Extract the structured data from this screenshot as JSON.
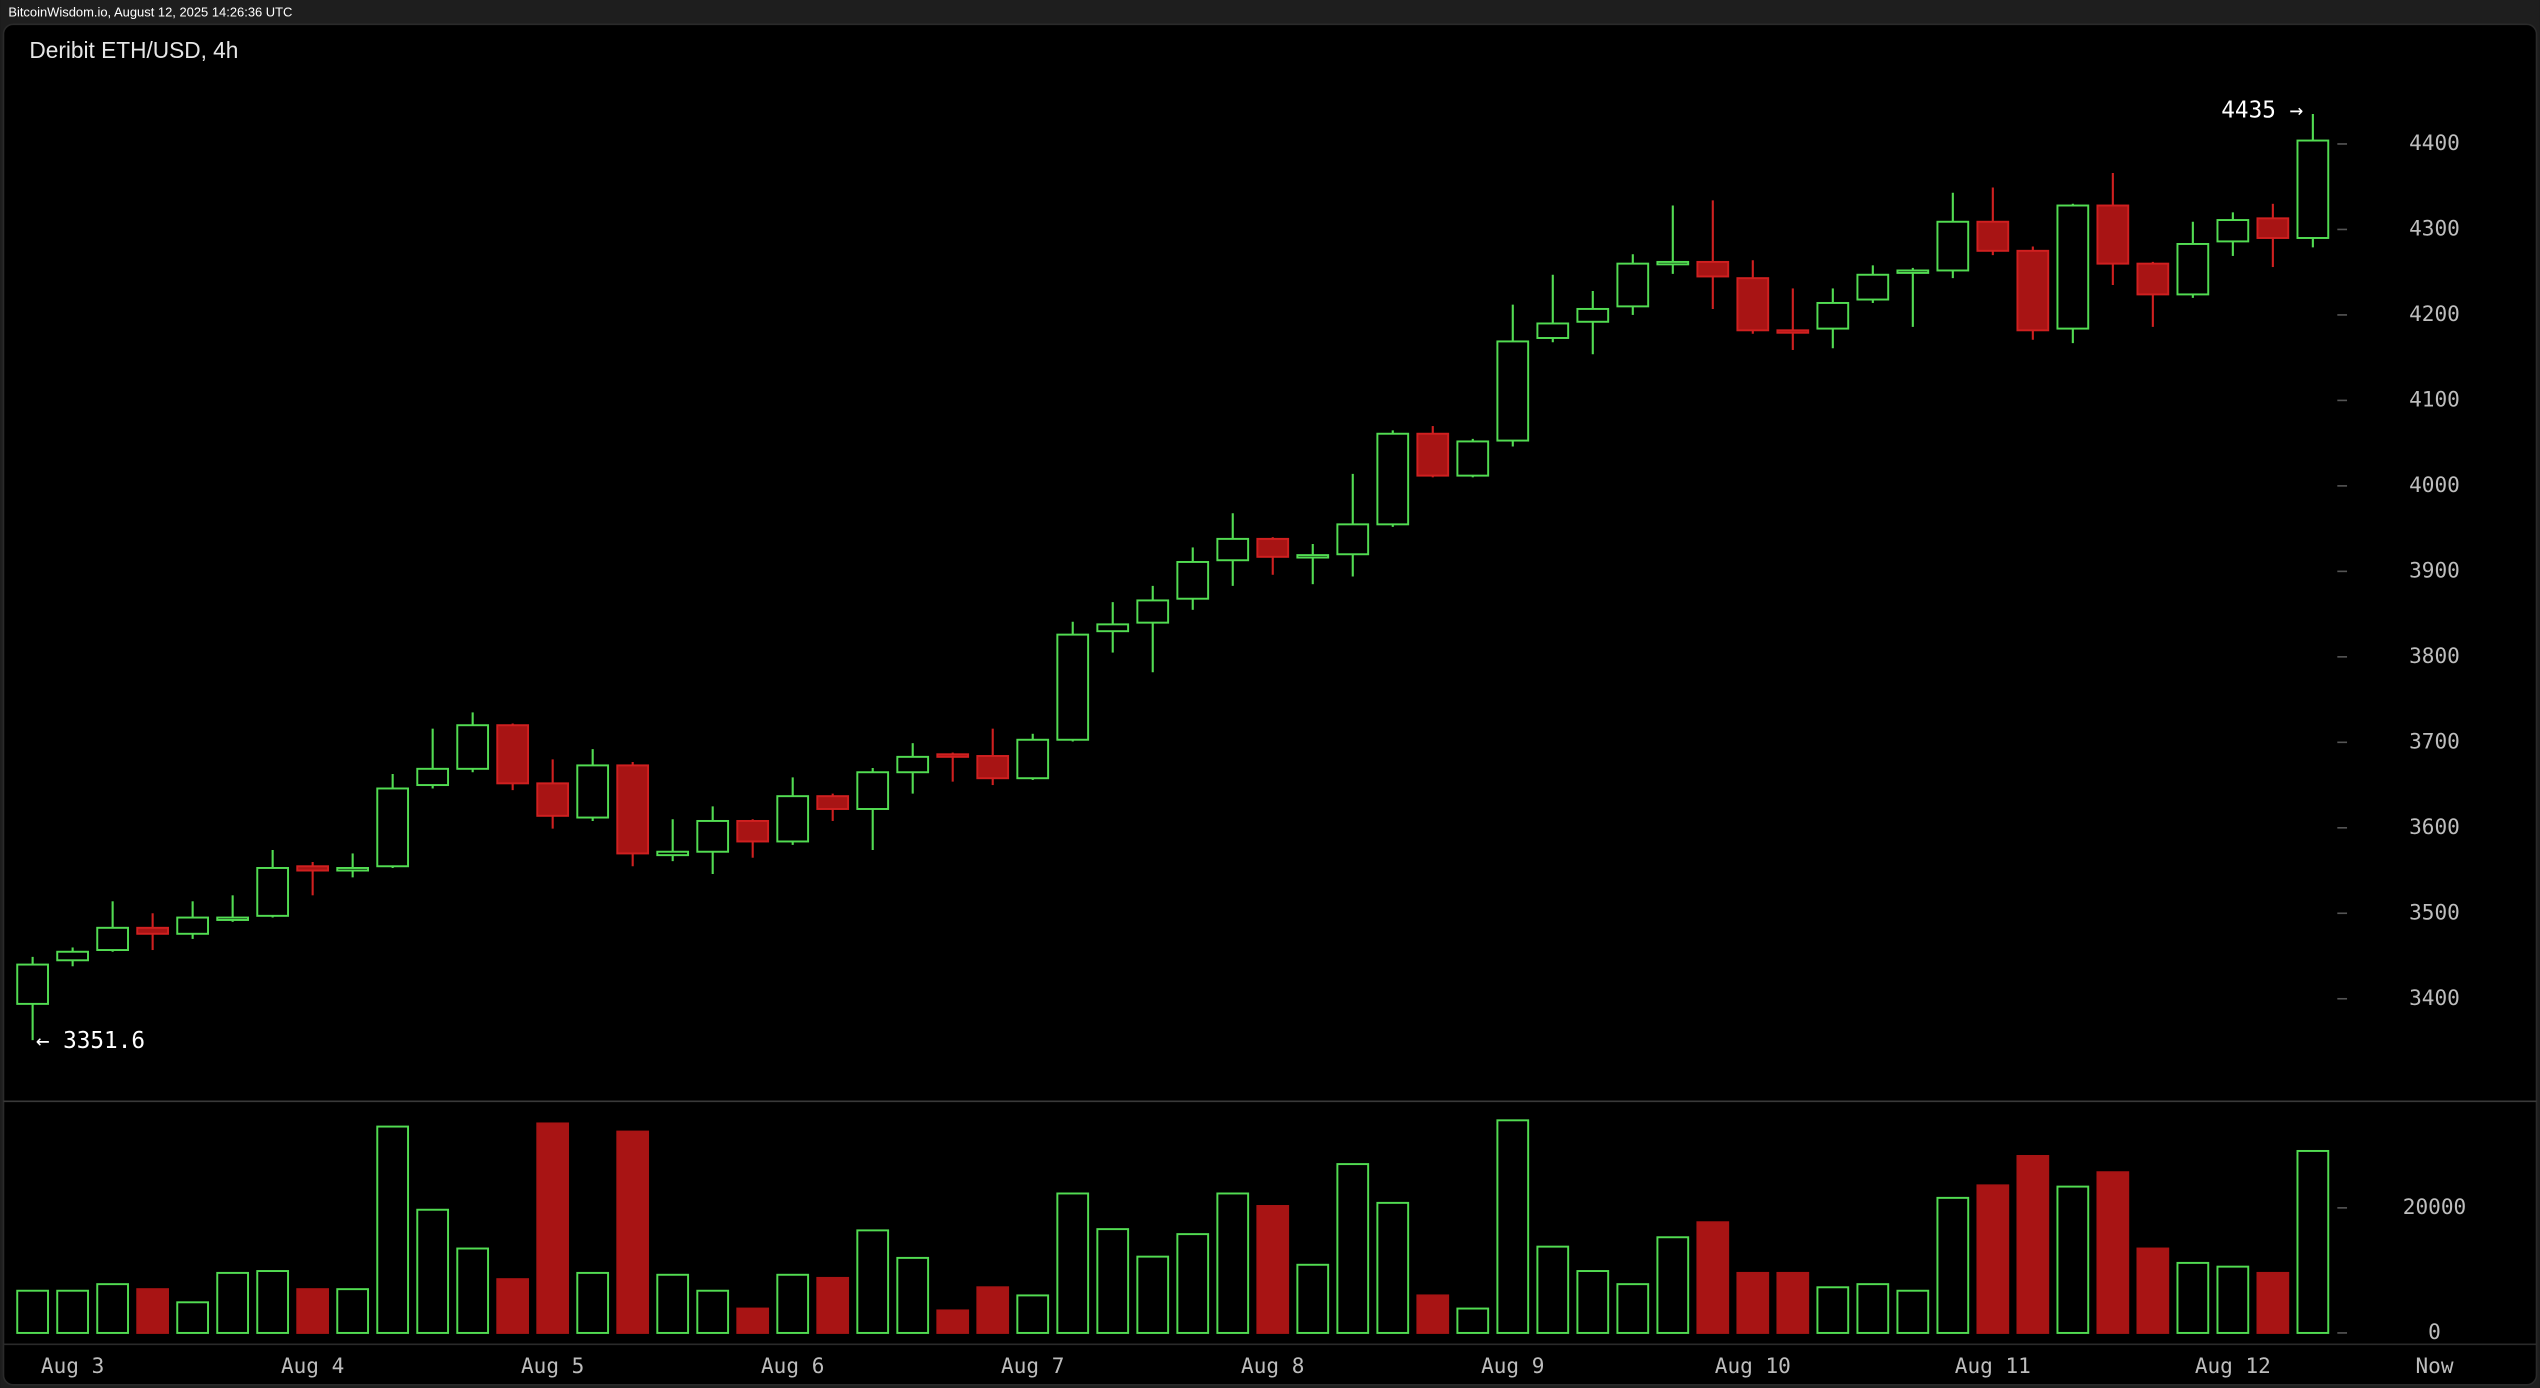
{
  "header": "BitcoinWisdom.io, August 12, 2025 14:26:36 UTC",
  "chart_data": {
    "type": "candlestick",
    "title": "Deribit ETH/USD, 4h",
    "categories": [
      null,
      "Aug 3",
      null,
      null,
      null,
      null,
      null,
      "Aug 4",
      null,
      null,
      null,
      null,
      null,
      "Aug 5",
      null,
      null,
      null,
      null,
      null,
      "Aug 6",
      null,
      null,
      null,
      null,
      null,
      "Aug 7",
      null,
      null,
      null,
      null,
      null,
      "Aug 8",
      null,
      null,
      null,
      null,
      null,
      "Aug 9",
      null,
      null,
      null,
      null,
      null,
      "Aug 10",
      null,
      null,
      null,
      null,
      null,
      "Aug 11",
      null,
      null,
      null,
      null,
      null,
      "Aug 12",
      null,
      null
    ],
    "now_label": "Now",
    "open": [
      3394,
      3445,
      3457,
      3483,
      3476,
      3493,
      3497,
      3555,
      3550,
      3555,
      3650,
      3669,
      3720,
      3652,
      3612,
      3673,
      3568,
      3572,
      3608,
      3584,
      3637,
      3622,
      3665,
      3686,
      3684,
      3658,
      3703,
      3830,
      3840,
      3868,
      3913,
      3938,
      3917,
      3920,
      3955,
      4061,
      4012,
      4053,
      4173,
      4192,
      4210,
      4260,
      4262,
      4243,
      4182,
      4184,
      4218,
      4250,
      4252,
      4309,
      4275,
      4184,
      4328,
      4260,
      4224,
      4286,
      4313,
      4290
    ],
    "high": [
      3449,
      3460,
      3514,
      3500,
      3514,
      3521,
      3574,
      3560,
      3570,
      3663,
      3716,
      3735,
      3722,
      3680,
      3692,
      3677,
      3610,
      3625,
      3610,
      3659,
      3640,
      3670,
      3699,
      3688,
      3716,
      3710,
      3841,
      3864,
      3883,
      3928,
      3968,
      3940,
      3932,
      4014,
      4065,
      4070,
      4055,
      4212,
      4247,
      4228,
      4271,
      4328,
      4334,
      4264,
      4231,
      4231,
      4258,
      4255,
      4343,
      4349,
      4280,
      4330,
      4366,
      4262,
      4309,
      4320,
      4330,
      4435
    ],
    "low": [
      3351.6,
      3438,
      3455,
      3457,
      3470,
      3490,
      3495,
      3521,
      3542,
      3553,
      3646,
      3665,
      3644,
      3599,
      3608,
      3555,
      3561,
      3546,
      3565,
      3580,
      3608,
      3574,
      3640,
      3654,
      3650,
      3656,
      3701,
      3805,
      3782,
      3855,
      3883,
      3896,
      3885,
      3894,
      3952,
      4010,
      4010,
      4046,
      4168,
      4154,
      4200,
      4248,
      4207,
      4178,
      4159,
      4161,
      4214,
      4186,
      4243,
      4270,
      4171,
      4167,
      4235,
      4186,
      4220,
      4269,
      4256,
      4279
    ],
    "close": [
      3440,
      3455,
      3483,
      3476,
      3495,
      3495,
      3553,
      3550,
      3553,
      3646,
      3669,
      3720,
      3652,
      3614,
      3673,
      3570,
      3572,
      3608,
      3584,
      3637,
      3622,
      3665,
      3683,
      3683,
      3658,
      3703,
      3826,
      3838,
      3866,
      3911,
      3938,
      3917,
      3919,
      3955,
      4061,
      4012,
      4052,
      4169,
      4190,
      4207,
      4260,
      4262,
      4245,
      4182,
      4180,
      4214,
      4247,
      4252,
      4309,
      4275,
      4182,
      4328,
      4260,
      4224,
      4283,
      4311,
      4290,
      4404
    ],
    "volume": [
      6750,
      6750,
      7800,
      7000,
      4900,
      9600,
      9900,
      7000,
      7000,
      33000,
      19700,
      13500,
      8600,
      33500,
      9600,
      32200,
      9300,
      6750,
      3900,
      9300,
      8800,
      16400,
      12000,
      3600,
      7300,
      6000,
      22300,
      16600,
      12200,
      15800,
      22300,
      20300,
      10900,
      27000,
      20800,
      6000,
      3900,
      34000,
      13800,
      9900,
      7800,
      15300,
      17700,
      9600,
      9600,
      7300,
      7800,
      6750,
      21600,
      23600,
      28300,
      23400,
      25700,
      13500,
      11200,
      10600,
      9600,
      29100
    ],
    "up_color": "#52dc52",
    "down_color": "#a81414",
    "ylim": [
      3280,
      4540
    ],
    "yticks": [
      3400,
      3500,
      3600,
      3700,
      3800,
      3900,
      4000,
      4100,
      4200,
      4300,
      4400
    ],
    "y2lim": [
      0,
      36000
    ],
    "y2ticks": [
      0,
      20000
    ],
    "high_label": "4435 →",
    "low_label": "← 3351.6"
  }
}
